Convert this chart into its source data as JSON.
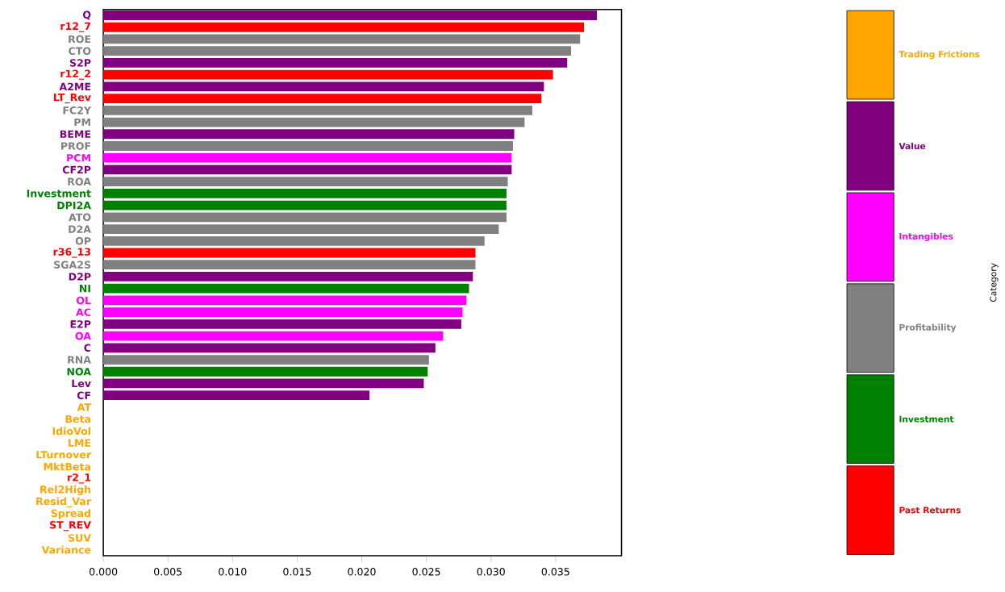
{
  "chart_data": {
    "type": "bar",
    "orientation": "horizontal",
    "categories": [
      "Q",
      "r12_7",
      "ROE",
      "CTO",
      "S2P",
      "r12_2",
      "A2ME",
      "LT_Rev",
      "FC2Y",
      "PM",
      "BEME",
      "PROF",
      "PCM",
      "CF2P",
      "ROA",
      "Investment",
      "DPI2A",
      "ATO",
      "D2A",
      "OP",
      "r36_13",
      "SGA2S",
      "D2P",
      "NI",
      "OL",
      "AC",
      "E2P",
      "OA",
      "C",
      "RNA",
      "NOA",
      "Lev",
      "CF",
      "AT",
      "Beta",
      "IdioVol",
      "LME",
      "LTurnover",
      "MktBeta",
      "r2_1",
      "Rel2High",
      "Resid_Var",
      "Spread",
      "ST_REV",
      "SUV",
      "Variance"
    ],
    "series": [
      {
        "name": "Trading Frictions",
        "color": "#ffa500",
        "values": [
          null,
          null,
          null,
          null,
          null,
          null,
          null,
          null,
          null,
          null,
          null,
          null,
          null,
          null,
          null,
          null,
          null,
          null,
          null,
          null,
          null,
          null,
          null,
          null,
          null,
          null,
          null,
          null,
          null,
          null,
          null,
          null,
          null,
          0,
          0,
          0,
          0,
          0,
          0,
          null,
          0,
          0,
          0,
          null,
          0,
          0
        ]
      },
      {
        "name": "Value",
        "color": "#800080",
        "values": [
          0.0382,
          null,
          null,
          null,
          0.0359,
          null,
          0.0341,
          null,
          null,
          null,
          0.0318,
          null,
          null,
          0.0316,
          null,
          null,
          null,
          null,
          null,
          null,
          null,
          null,
          0.0286,
          null,
          null,
          null,
          0.0277,
          null,
          0.0257,
          null,
          null,
          0.0248,
          0.0206,
          null,
          null,
          null,
          null,
          null,
          null,
          null,
          null,
          null,
          null,
          null,
          null,
          null
        ]
      },
      {
        "name": "Intangibles",
        "color": "#ff00ff",
        "values": [
          null,
          null,
          null,
          null,
          null,
          null,
          null,
          null,
          null,
          null,
          null,
          null,
          0.0316,
          null,
          null,
          null,
          null,
          null,
          null,
          null,
          null,
          null,
          null,
          null,
          0.0281,
          0.0278,
          null,
          0.0263,
          null,
          null,
          null,
          null,
          null,
          null,
          null,
          null,
          null,
          null,
          null,
          null,
          null,
          null,
          null,
          null,
          null,
          null
        ]
      },
      {
        "name": "Profitability",
        "color": "#808080",
        "values": [
          null,
          null,
          0.0369,
          0.0362,
          null,
          null,
          null,
          null,
          0.0332,
          0.0326,
          null,
          0.0317,
          null,
          null,
          0.0313,
          null,
          null,
          0.0312,
          0.0306,
          0.0295,
          null,
          0.0288,
          null,
          null,
          null,
          null,
          null,
          null,
          null,
          0.0252,
          null,
          null,
          null,
          null,
          null,
          null,
          null,
          null,
          null,
          null,
          null,
          null,
          null,
          null,
          null,
          null
        ]
      },
      {
        "name": "Investment",
        "color": "#008000",
        "values": [
          null,
          null,
          null,
          null,
          null,
          null,
          null,
          null,
          null,
          null,
          null,
          null,
          null,
          null,
          null,
          0.0312,
          0.0312,
          null,
          null,
          null,
          null,
          null,
          null,
          0.0283,
          null,
          null,
          null,
          null,
          null,
          null,
          0.0251,
          null,
          null,
          null,
          null,
          null,
          null,
          null,
          null,
          null,
          null,
          null,
          null,
          null,
          null,
          null
        ]
      },
      {
        "name": "Past Returns",
        "color": "#ff0000",
        "values": [
          null,
          0.0372,
          null,
          null,
          null,
          0.0348,
          null,
          0.0339,
          null,
          null,
          null,
          null,
          null,
          null,
          null,
          null,
          null,
          null,
          null,
          null,
          0.0288,
          null,
          null,
          null,
          null,
          null,
          null,
          null,
          null,
          null,
          null,
          null,
          null,
          null,
          null,
          null,
          null,
          null,
          null,
          0,
          null,
          null,
          null,
          0,
          null,
          null
        ]
      }
    ],
    "xlim": [
      0,
      0.0401
    ],
    "xticks": [
      {
        "value": 0,
        "label": "0.000"
      },
      {
        "value": 0.005,
        "label": "0.005"
      },
      {
        "value": 0.01,
        "label": "0.010"
      },
      {
        "value": 0.015,
        "label": "0.015"
      },
      {
        "value": 0.02,
        "label": "0.020"
      },
      {
        "value": 0.025,
        "label": "0.025"
      },
      {
        "value": 0.03,
        "label": "0.030"
      },
      {
        "value": 0.035,
        "label": "0.035"
      }
    ],
    "grid": false,
    "legend": "right",
    "legend_title": "Category"
  }
}
